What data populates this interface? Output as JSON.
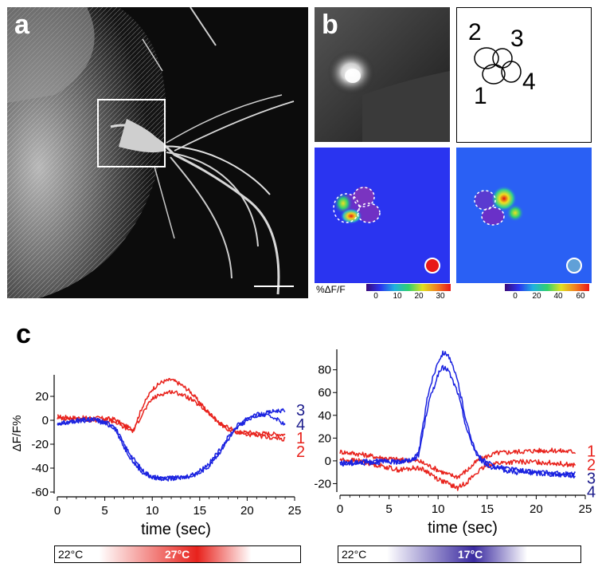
{
  "panels": {
    "a": "a",
    "b": "b",
    "c": "c"
  },
  "roi_labels": [
    "1",
    "2",
    "3",
    "4"
  ],
  "colorbars": [
    {
      "label": "%ΔF/F",
      "ticks": [
        "0",
        "10",
        "20",
        "30"
      ]
    },
    {
      "label": "",
      "ticks": [
        "0",
        "20",
        "40",
        "60"
      ]
    }
  ],
  "colors": {
    "red": "#e8221c",
    "blue": "#1a22e0",
    "navy": "#1c1c8c",
    "heat_bg": "#2a34f0"
  },
  "chart_data": [
    {
      "type": "line",
      "xlabel": "time (sec)",
      "ylabel": "ΔF/F%",
      "xlim": [
        0,
        25
      ],
      "ylim": [
        -60,
        38
      ],
      "xticks": [
        "0",
        "5",
        "10",
        "15",
        "20",
        "25"
      ],
      "yticks": [
        "20",
        "0",
        "-20",
        "-40",
        "-60"
      ],
      "series": [
        {
          "name": "1",
          "color": "#e8221c",
          "x": [
            0,
            2,
            4,
            6,
            7,
            8,
            9,
            10,
            11,
            12,
            13,
            14,
            15,
            16,
            17,
            18,
            19,
            20,
            22,
            24
          ],
          "y": [
            3,
            2,
            2,
            1,
            -4,
            -8,
            12,
            26,
            32,
            34,
            30,
            24,
            15,
            6,
            -2,
            -8,
            -10,
            -10,
            -11,
            -12
          ]
        },
        {
          "name": "2",
          "color": "#e8221c",
          "x": [
            0,
            2,
            4,
            6,
            7,
            8,
            9,
            10,
            11,
            12,
            13,
            14,
            15,
            16,
            17,
            18,
            19,
            20,
            22,
            24
          ],
          "y": [
            2,
            1,
            0,
            -1,
            -6,
            -9,
            6,
            18,
            22,
            24,
            22,
            18,
            12,
            6,
            -2,
            -6,
            -10,
            -12,
            -14,
            -16
          ]
        },
        {
          "name": "3",
          "color": "#1a22e0",
          "x": [
            0,
            2,
            4,
            6,
            7,
            8,
            9,
            10,
            11,
            12,
            13,
            14,
            15,
            16,
            17,
            18,
            19,
            20,
            21,
            22,
            23,
            24
          ],
          "y": [
            -3,
            0,
            1,
            -4,
            -20,
            -32,
            -42,
            -47,
            -48,
            -48,
            -48,
            -47,
            -44,
            -38,
            -28,
            -16,
            -6,
            0,
            4,
            6,
            8,
            8
          ]
        },
        {
          "name": "4",
          "color": "#1a22e0",
          "x": [
            0,
            2,
            4,
            6,
            7,
            8,
            9,
            10,
            11,
            12,
            13,
            14,
            15,
            16,
            17,
            18,
            19,
            20,
            21,
            22,
            23,
            24
          ],
          "y": [
            -4,
            -1,
            0,
            -6,
            -22,
            -35,
            -44,
            -48,
            -49,
            -49,
            -48,
            -46,
            -42,
            -36,
            -26,
            -14,
            -4,
            2,
            5,
            4,
            2,
            -4
          ]
        }
      ],
      "stimulus": {
        "start": "22°C",
        "end": "27°C",
        "color": "#e8221c"
      }
    },
    {
      "type": "line",
      "xlabel": "time (sec)",
      "ylabel": "",
      "xlim": [
        0,
        25
      ],
      "ylim": [
        -26,
        98
      ],
      "xticks": [
        "0",
        "5",
        "10",
        "15",
        "20",
        "25"
      ],
      "yticks": [
        "80",
        "60",
        "40",
        "20",
        "0",
        "-20"
      ],
      "series": [
        {
          "name": "1",
          "color": "#e8221c",
          "x": [
            0,
            2,
            4,
            6,
            8,
            9,
            10,
            11,
            12,
            13,
            14,
            15,
            16,
            18,
            20,
            22,
            24
          ],
          "y": [
            8,
            6,
            3,
            1,
            0,
            -4,
            -8,
            -12,
            -14,
            -8,
            0,
            4,
            7,
            8,
            9,
            9,
            8
          ]
        },
        {
          "name": "2",
          "color": "#e8221c",
          "x": [
            0,
            2,
            4,
            6,
            8,
            9,
            10,
            11,
            12,
            13,
            14,
            15,
            16,
            18,
            20,
            22,
            24
          ],
          "y": [
            1,
            0,
            -4,
            -8,
            -6,
            -10,
            -16,
            -20,
            -24,
            -18,
            -10,
            -4,
            -2,
            -1,
            -1,
            -2,
            -4
          ]
        },
        {
          "name": "3",
          "color": "#1a22e0",
          "x": [
            0,
            2,
            4,
            6,
            7,
            8,
            9,
            10,
            10.5,
            11,
            12,
            13,
            14,
            15,
            16,
            18,
            20,
            22,
            24
          ],
          "y": [
            -2,
            -1,
            0,
            0,
            0,
            6,
            60,
            88,
            95,
            94,
            70,
            30,
            5,
            -2,
            -5,
            -8,
            -10,
            -11,
            -12
          ]
        },
        {
          "name": "4",
          "color": "#1a22e0",
          "x": [
            0,
            2,
            4,
            6,
            7,
            8,
            9,
            10,
            10.5,
            11,
            12,
            13,
            14,
            15,
            16,
            18,
            20,
            22,
            24
          ],
          "y": [
            -3,
            -2,
            -1,
            -1,
            0,
            4,
            50,
            76,
            82,
            80,
            60,
            25,
            4,
            -4,
            -7,
            -10,
            -11,
            -12,
            -13
          ]
        }
      ],
      "stimulus": {
        "start": "22°C",
        "end": "17°C",
        "color": "#3a2aa0"
      }
    }
  ]
}
